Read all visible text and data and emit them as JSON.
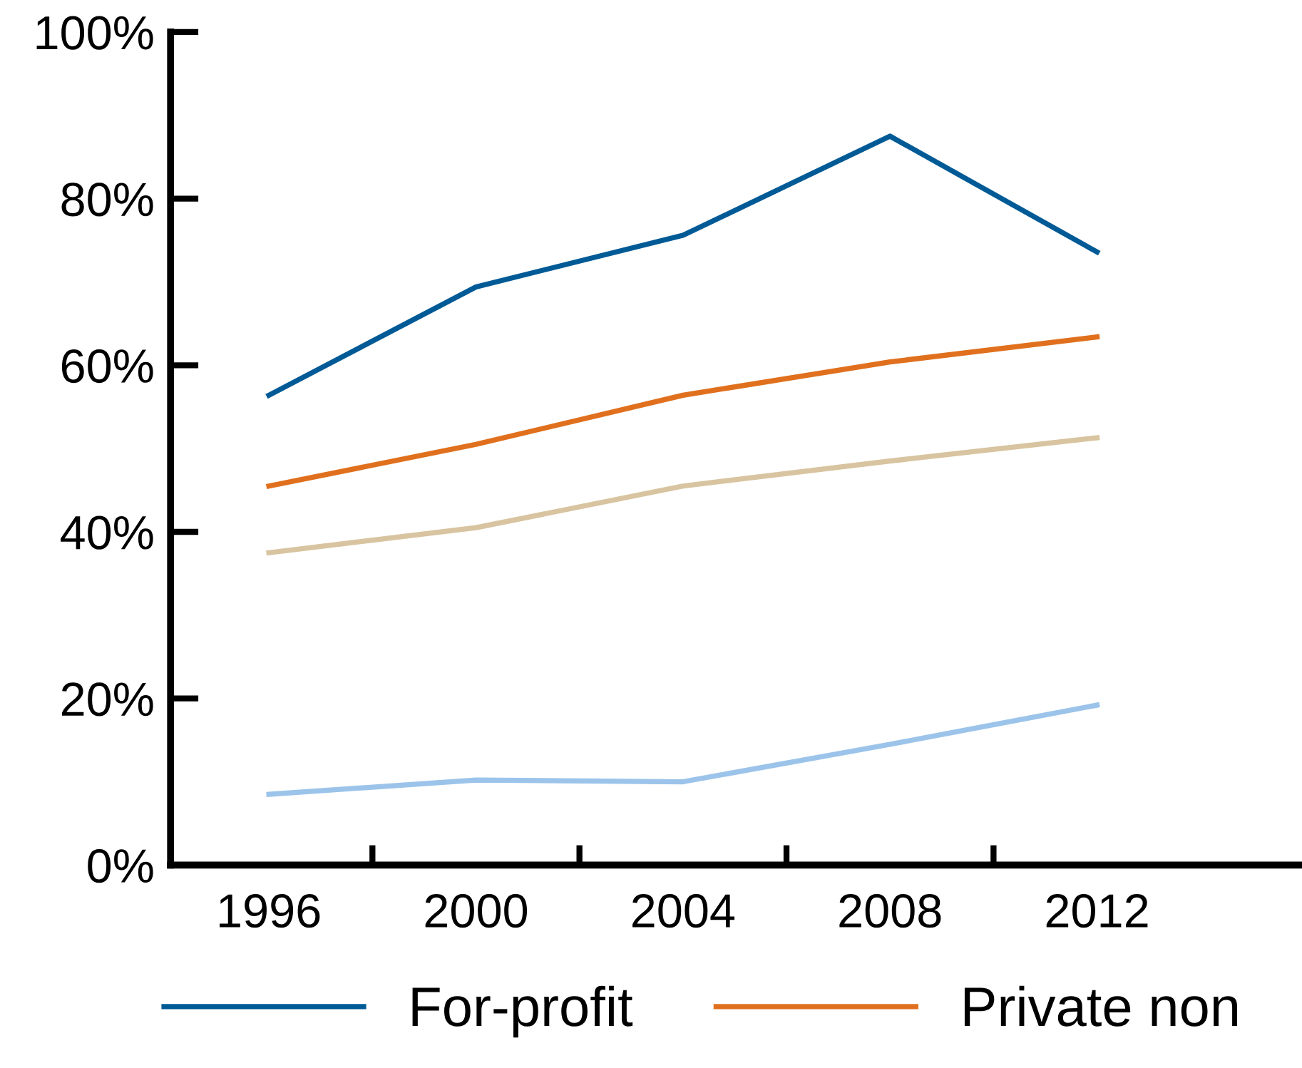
{
  "chart_data": {
    "type": "line",
    "categories": [
      "1996",
      "2000",
      "2004",
      "2008",
      "2012"
    ],
    "series": [
      {
        "name": "For-profit",
        "color": "#005a96",
        "values": [
          56.4,
          69.4,
          75.6,
          87.5,
          73.6
        ]
      },
      {
        "name": "Private non",
        "color": "#e0701e",
        "values": [
          45.5,
          50.5,
          56.4,
          60.4,
          63.4
        ]
      },
      {
        "color": "#d8c4a0",
        "values": [
          37.5,
          40.5,
          45.5,
          48.5,
          51.3
        ]
      },
      {
        "color": "#9cc4ea",
        "values": [
          8.5,
          10.2,
          10.0,
          14.5,
          19.2
        ]
      }
    ],
    "ylim": [
      0,
      100
    ],
    "yticks": [
      {
        "value": 0,
        "label": "0%"
      },
      {
        "value": 20,
        "label": "20%"
      },
      {
        "value": 40,
        "label": "40%"
      },
      {
        "value": 60,
        "label": "60%"
      },
      {
        "value": 80,
        "label": "80%"
      },
      {
        "value": 100,
        "label": "100%"
      }
    ],
    "grid": false,
    "legend": "bottom",
    "marker": "none",
    "line_style": "solid"
  }
}
